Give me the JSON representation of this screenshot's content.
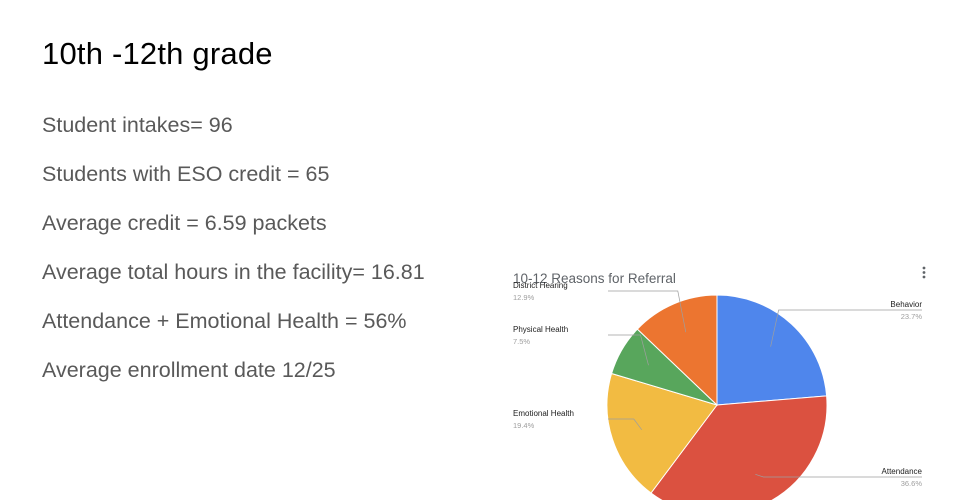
{
  "slide": {
    "title": "10th -12th grade",
    "stats": [
      "Student intakes= 96",
      "Students with ESO credit = 65",
      "Average credit = 6.59 packets",
      "Average total hours in the facility= 16.81",
      "Attendance + Emotional Health = 56%",
      "Average enrollment date 12/25"
    ]
  },
  "chart_menu_icon": "more-vert-icon",
  "chart_data": {
    "type": "pie",
    "title": "10-12 Reasons for Referral",
    "legend": "labels",
    "slices": [
      {
        "name": "Behavior",
        "label": "23.7%",
        "value": 23.7,
        "color": "#4f86ec"
      },
      {
        "name": "Attendance",
        "label": "36.6%",
        "value": 36.6,
        "color": "#db5140"
      },
      {
        "name": "Emotional Health",
        "label": "19.4%",
        "value": 19.4,
        "color": "#f2bb42"
      },
      {
        "name": "Physical Health",
        "label": "7.5%",
        "value": 7.5,
        "color": "#58a65c"
      },
      {
        "name": "District Hearing",
        "label": "12.9%",
        "value": 12.9,
        "color": "#ec7530"
      }
    ]
  }
}
